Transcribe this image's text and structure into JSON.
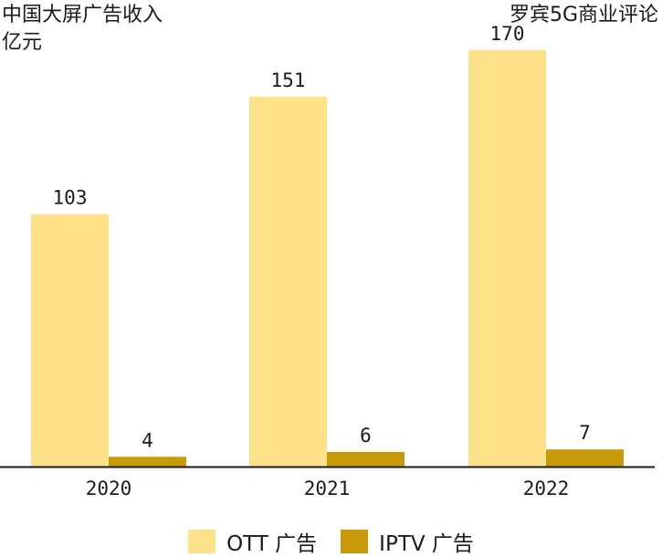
{
  "title_line1": "中国大屏广告收入",
  "title_line2": "亿元",
  "source": "罗宾5G商业评论",
  "colors": {
    "ott": "#FDE28A",
    "iptv": "#C89A0A",
    "axis": "#1a1a1a"
  },
  "chart_data": {
    "type": "bar",
    "categories": [
      "2020",
      "2021",
      "2022"
    ],
    "series": [
      {
        "name": "OTT 广告",
        "values": [
          103,
          151,
          170
        ]
      },
      {
        "name": "IPTV 广告",
        "values": [
          4,
          6,
          7
        ]
      }
    ],
    "ylim": [
      0,
      180
    ],
    "grid": false,
    "legend": "bottom-center"
  }
}
